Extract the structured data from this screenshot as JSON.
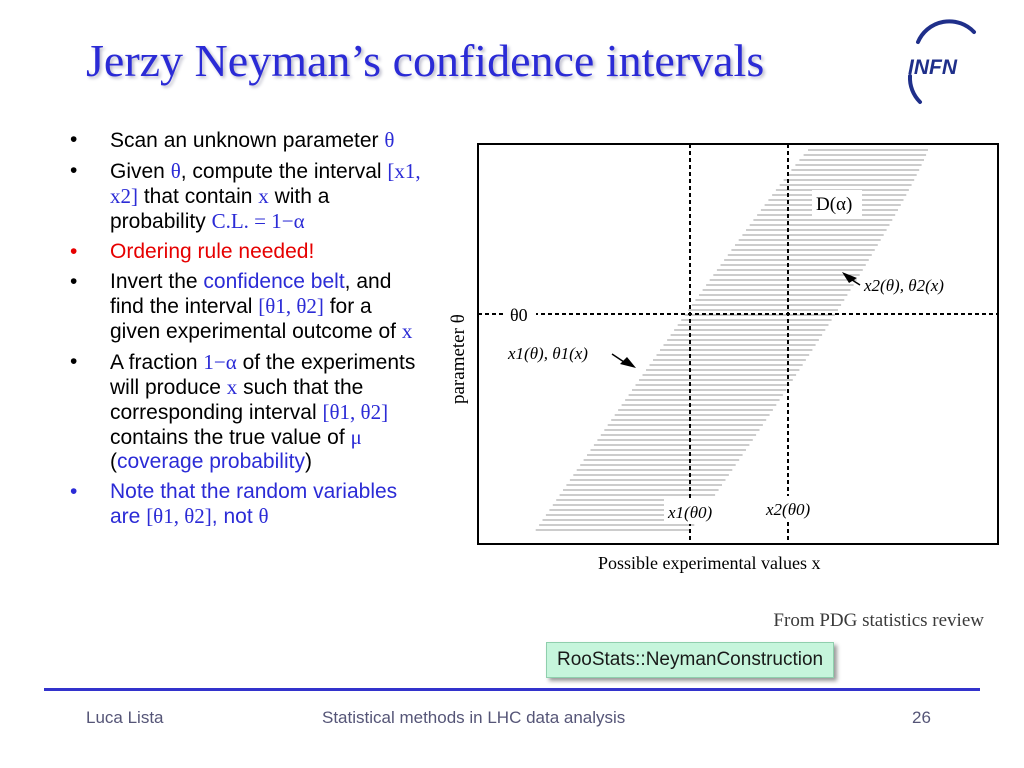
{
  "slide": {
    "title": "Jerzy Neyman’s confidence intervals",
    "logo_text": "INFN",
    "bullets": [
      {
        "p1": "Scan an unknown parameter ",
        "s1": "θ"
      },
      {
        "p1": "Given ",
        "s1": "θ",
        "p2": ", compute the interval ",
        "s2": "[x1, x2]",
        "p3": " that contain ",
        "s3": "x",
        "p4": " with a probability ",
        "s4": "C.L. = 1−α"
      },
      {
        "text": "Ordering rule needed!"
      },
      {
        "p1": "Invert the ",
        "link": "confidence belt",
        "p2": ", and find the interval ",
        "s1": "[θ1, θ2]",
        "p3": " for a given experimental outcome of ",
        "s2": "x"
      },
      {
        "p1": "A fraction ",
        "s1": "1−α",
        "p2": " of the experiments will produce ",
        "s2": "x",
        "p3": " such that the corresponding interval ",
        "s3": "[θ1, θ2]",
        "p4": " contains the true value of ",
        "s4": "μ",
        "p5": " (",
        "link": "coverage probability",
        "p6": ")"
      },
      {
        "p1": "Note that the random variables are ",
        "s1": "[θ1, θ2]",
        "p2": ", not ",
        "s2": "θ"
      }
    ],
    "figure": {
      "belt_label": "D(α)",
      "upper_curve_label": "x2(θ), θ2(x)",
      "lower_curve_label": "x1(θ), θ1(x)",
      "theta0_label": "θ0",
      "x1_label": "x1(θ0)",
      "x2_label": "x2(θ0)",
      "y_axis_label": "parameter θ",
      "x_axis_label": "Possible experimental values x"
    },
    "caption": "From PDG statistics review",
    "code_box": "RooStats::NeymanConstruction"
  },
  "footer": {
    "author": "Luca Lista",
    "course": "Statistical methods in LHC data analysis",
    "page": "26"
  },
  "colors": {
    "title": "#2b2bd6",
    "accent": "#2b2bd6",
    "alert": "#e60000",
    "code_bg": "#c6f5dc",
    "footer_line": "#3333cc"
  }
}
